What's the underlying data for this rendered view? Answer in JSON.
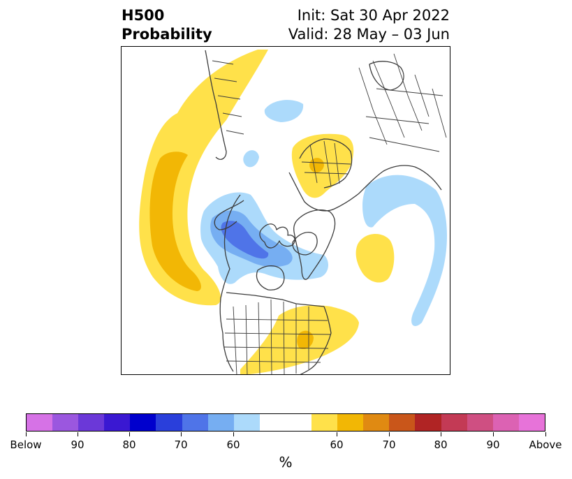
{
  "header": {
    "title_line1": "H500",
    "title_line2": "Probability",
    "init_text": "Init: Sat 30 Apr 2022",
    "valid_text": "Valid: 28 May – 03 Jun"
  },
  "map": {
    "projection": "north-polar-stereographic",
    "features": [
      {
        "name": "above-normal-pacific-band",
        "category": "above",
        "level": 60
      },
      {
        "name": "above-normal-pacific-core",
        "category": "above",
        "level": 65
      },
      {
        "name": "above-normal-eastern-us",
        "category": "above",
        "level": 60
      },
      {
        "name": "above-normal-eastern-us-core",
        "category": "above",
        "level": 65
      },
      {
        "name": "above-normal-europe",
        "category": "above",
        "level": 60
      },
      {
        "name": "above-normal-europe-core",
        "category": "above",
        "level": 65
      },
      {
        "name": "above-normal-north-atlantic",
        "category": "above",
        "level": 60
      },
      {
        "name": "above-normal-siberia",
        "category": "above",
        "level": 60
      },
      {
        "name": "below-normal-canada",
        "category": "below",
        "level": 60
      },
      {
        "name": "below-normal-canada-core",
        "category": "below",
        "level": 70
      },
      {
        "name": "below-normal-canada-center",
        "category": "below",
        "level": 75
      },
      {
        "name": "below-normal-atlantic-arc",
        "category": "below",
        "level": 60
      },
      {
        "name": "below-normal-ural",
        "category": "below",
        "level": 60
      },
      {
        "name": "below-normal-arctic",
        "category": "below",
        "level": 60
      }
    ]
  },
  "colorbar": {
    "unit_label": "%",
    "colors": [
      "#d672e6",
      "#9b57df",
      "#6b38d8",
      "#3a18d2",
      "#0000cd",
      "#2a3fdb",
      "#4f74e8",
      "#76aef2",
      "#acdafb",
      "#ffffff",
      "#ffe14a",
      "#f2b705",
      "#e08a12",
      "#c9561a",
      "#b02424",
      "#c33a55",
      "#cf4f82",
      "#dc62b3",
      "#e773d9"
    ],
    "tick_labels": [
      "Below",
      "90",
      "80",
      "70",
      "60",
      "60",
      "70",
      "80",
      "90",
      "Above"
    ]
  }
}
